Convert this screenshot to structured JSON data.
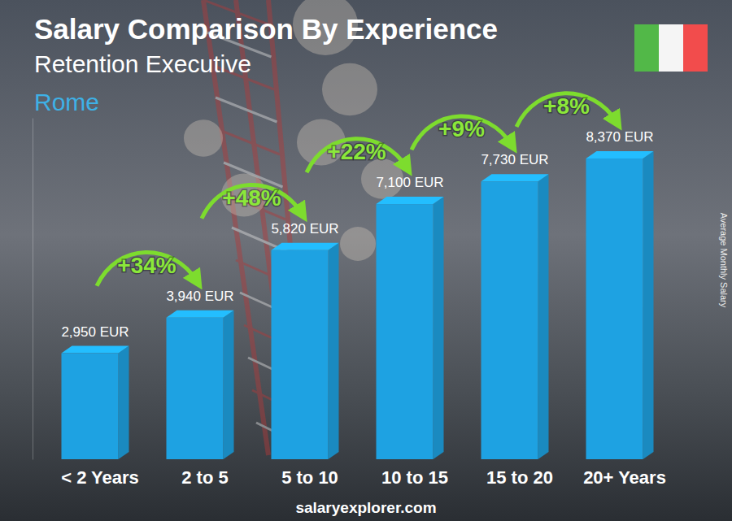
{
  "chart_data": {
    "type": "bar",
    "title": "Salary Comparison By Experience",
    "subtitle": "Retention Executive",
    "annotations": [
      "Rome",
      "salaryexplorer.com"
    ],
    "ylabel": "Average Monthly Salary",
    "categories": [
      "< 2 Years",
      "2 to 5",
      "5 to 10",
      "10 to 15",
      "15 to 20",
      "20+ Years"
    ],
    "values": [
      2950,
      3940,
      5820,
      7100,
      7730,
      8370
    ],
    "value_labels": [
      "2,950 EUR",
      "3,940 EUR",
      "5,820 EUR",
      "7,100 EUR",
      "7,730 EUR",
      "8,370 EUR"
    ],
    "increases": [
      34,
      48,
      22,
      9,
      8
    ],
    "increase_labels": [
      "+34%",
      "+48%",
      "+22%",
      "+9%",
      "+8%"
    ],
    "color": "#1ea2e2",
    "ylim": [
      0,
      9500
    ],
    "yticks": [],
    "grid": false,
    "data_labels": true,
    "tick_labels": "x"
  }
}
